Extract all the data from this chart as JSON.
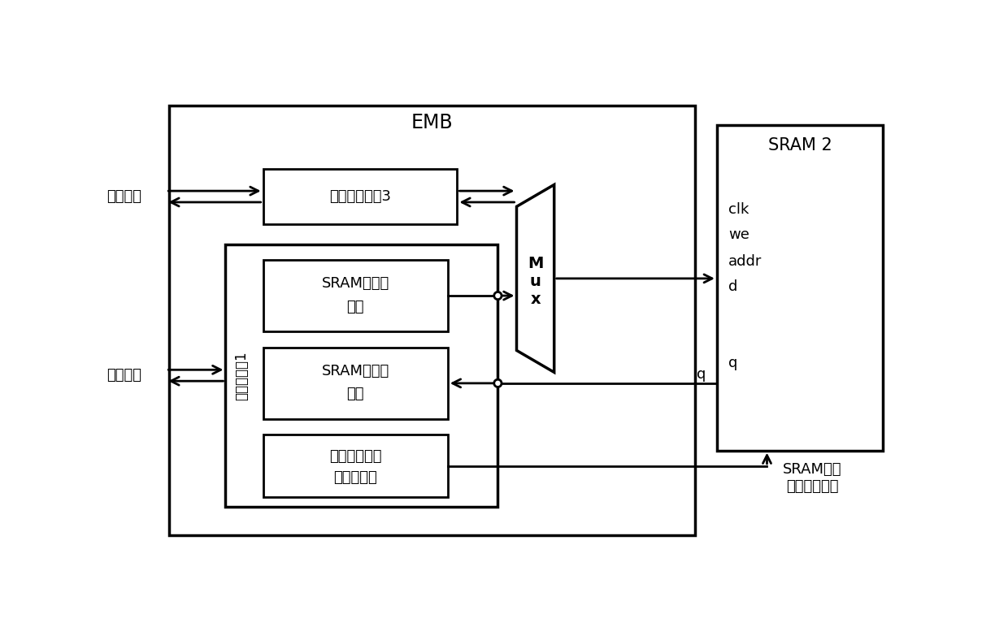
{
  "title": "EMB",
  "sram2_label": "SRAM 2",
  "config_ctrl_label": "配置控制器1",
  "user_interface_label": "用户接口",
  "config_interface_label": "配置接口",
  "user_ctrl_box_label": "用户控制接口3",
  "sram_write_label1": "SRAM写控制",
  "sram_write_label2": "逻辑",
  "sram_read_label1": "SRAM读控制",
  "sram_read_label2": "逻辑",
  "config_data_label1": "配置数据寄存",
  "config_data_label2": "器读写逻辑",
  "mux_label": "M\nu\nx",
  "clk_label": "clk",
  "we_label": "we",
  "addr_label": "addr",
  "d_label": "d",
  "q_label": "q",
  "sram_work_label1": "SRAM工作",
  "sram_work_label2": "模式控制接口",
  "bg_color": "#ffffff",
  "line_color": "#000000",
  "font_color": "#000000"
}
